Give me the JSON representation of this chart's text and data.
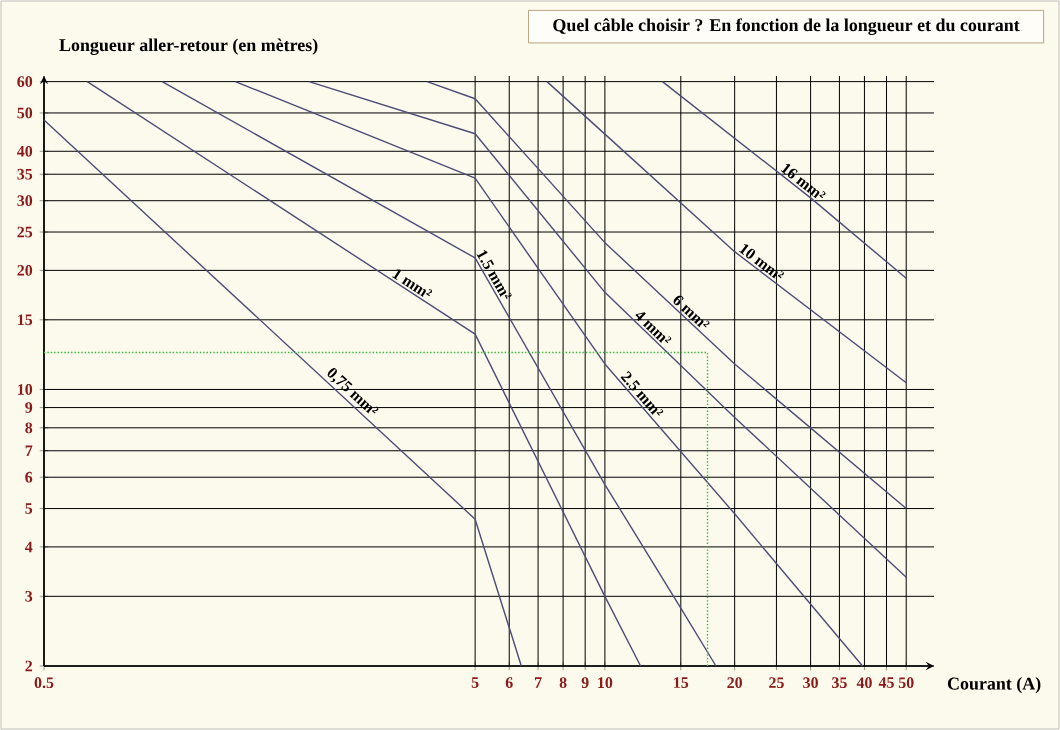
{
  "chart_data": {
    "type": "line",
    "title": "Quel câble choisir ?  En fonction de la longueur et du courant",
    "xlabel": "Courant (A)",
    "ylabel": "Longueur aller-retour (en mètres)",
    "log": "xy",
    "grid": true,
    "marker": "none",
    "xlim": [
      0.5,
      58
    ],
    "ylim": [
      2,
      62
    ],
    "xticks": [
      0.5,
      5,
      6,
      7,
      8,
      9,
      10,
      15,
      20,
      25,
      30,
      35,
      40,
      45,
      50
    ],
    "yticks": [
      2,
      3,
      4,
      5,
      6,
      7,
      8,
      9,
      10,
      15,
      20,
      25,
      30,
      35,
      40,
      50,
      60
    ],
    "series": [
      {
        "name": "0,75 mm²",
        "color": "#4c4c78",
        "line_style": "solid",
        "x": [
          0.5,
          5,
          6.4
        ],
        "values": [
          48,
          4.7,
          2
        ]
      },
      {
        "name": "1 mm²",
        "color": "#4c4c78",
        "line_style": "solid",
        "x": [
          0.63,
          5,
          10,
          12.1
        ],
        "values": [
          60,
          13.8,
          3.0,
          2
        ]
      },
      {
        "name": "1.5 mm²",
        "color": "#4c4c78",
        "line_style": "solid",
        "x": [
          0.94,
          5,
          10,
          15,
          18.1
        ],
        "values": [
          60,
          21.5,
          5.75,
          2.8,
          2
        ]
      },
      {
        "name": "2.5 mm²",
        "color": "#4c4c78",
        "line_style": "solid",
        "x": [
          1.39,
          5,
          10,
          20,
          39.6
        ],
        "values": [
          60,
          34.2,
          11.6,
          4.85,
          2
        ]
      },
      {
        "name": "4 mm²",
        "color": "#4c4c78",
        "line_style": "solid",
        "x": [
          2.06,
          5,
          10,
          20,
          50
        ],
        "values": [
          60,
          44.3,
          17.6,
          8.5,
          3.35
        ]
      },
      {
        "name": "6 mm²",
        "color": "#4c4c78",
        "line_style": "solid",
        "x": [
          3.87,
          5,
          10,
          20,
          50
        ],
        "values": [
          60,
          54.3,
          23.5,
          11.6,
          5
        ]
      },
      {
        "name": "10 mm²",
        "color": "#4c4c78",
        "line_style": "solid",
        "x": [
          7.34,
          10,
          20,
          50
        ],
        "values": [
          60,
          44.2,
          22.3,
          10.4
        ]
      },
      {
        "name": "16 mm²",
        "color": "#4c4c78",
        "line_style": "solid",
        "x": [
          13.6,
          30,
          50
        ],
        "values": [
          60,
          30.5,
          19.1
        ]
      },
      {
        "color": "#33bb33",
        "line_style": "dotted",
        "x": [
          0.5,
          17.3,
          17.3
        ],
        "values": [
          12.4,
          12.4,
          2
        ]
      }
    ]
  }
}
